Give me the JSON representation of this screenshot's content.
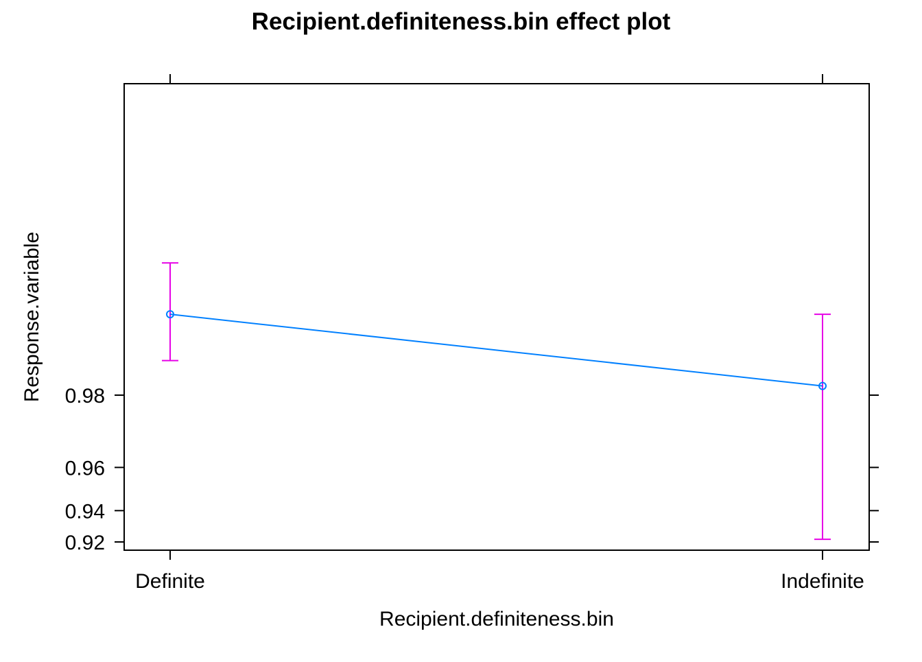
{
  "chart_data": {
    "type": "line",
    "title": "Recipient.definiteness.bin effect plot",
    "xlabel": "Recipient.definiteness.bin",
    "ylabel": "Response.variable",
    "categories": [
      "Definite",
      "Indefinite"
    ],
    "series": [
      {
        "values": [
          0.9909,
          0.9817
        ],
        "lower": [
          0.9857,
          0.9219
        ],
        "upper": [
          0.9945,
          0.9909
        ]
      }
    ],
    "y_scale": "logit",
    "y_ticks": [
      0.92,
      0.94,
      0.96,
      0.98
    ],
    "y_tick_labels": [
      "0.92",
      "0.94",
      "0.96",
      "0.98"
    ],
    "grid": false,
    "colors": {
      "line": "#0080ff",
      "error_bar": "#e600e6",
      "axis": "#000000"
    }
  }
}
